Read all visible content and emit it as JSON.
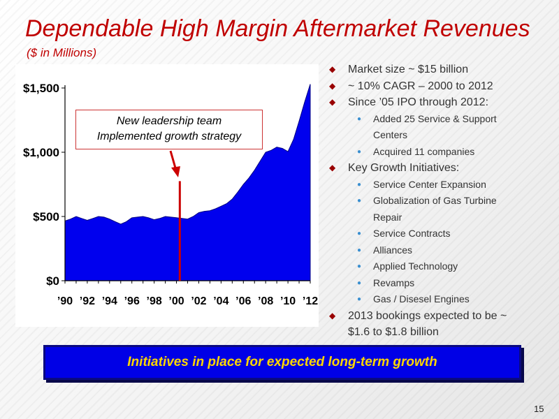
{
  "slide": {
    "title": "Dependable High Margin Aftermarket Revenues",
    "subtitle": "($ in Millions)",
    "callout_line1": "New leadership team",
    "callout_line2": "Implemented growth strategy",
    "banner": "Initiatives in place for expected long-term growth",
    "page_number": "15"
  },
  "bullets": [
    {
      "level": 1,
      "text": "Market size ~ $15 billion"
    },
    {
      "level": 1,
      "text": "~ 10% CAGR – 2000 to 2012"
    },
    {
      "level": 1,
      "text": "Since ’05 IPO through 2012:"
    },
    {
      "level": 2,
      "text": "Added 25 Service & Support"
    },
    {
      "level": 2,
      "text": "Centers",
      "continuation": true
    },
    {
      "level": 2,
      "text": "Acquired 11 companies"
    },
    {
      "level": 1,
      "text": "Key Growth Initiatives:"
    },
    {
      "level": 2,
      "text": "Service Center Expansion"
    },
    {
      "level": 2,
      "text": "Globalization of Gas Turbine"
    },
    {
      "level": 2,
      "text": "Repair",
      "continuation": true
    },
    {
      "level": 2,
      "text": "Service Contracts"
    },
    {
      "level": 2,
      "text": "Alliances"
    },
    {
      "level": 2,
      "text": "Applied Technology"
    },
    {
      "level": 2,
      "text": "Revamps"
    },
    {
      "level": 2,
      "text": "Gas / Disesel Engines"
    },
    {
      "level": 1,
      "text": "2013 bookings expected to be ~"
    },
    {
      "level": 1,
      "text": "$1.6 to $1.8 billion",
      "continuation": true
    }
  ],
  "colors": {
    "title": "#c00000",
    "area_fill": "#0000ee",
    "marker_line": "#cc0000",
    "banner_bg": "#0000e6",
    "banner_text": "#ffd700"
  },
  "chart_data": {
    "type": "area",
    "title": "",
    "xlabel": "",
    "ylabel": "",
    "ylim": [
      0,
      1500
    ],
    "yticks": [
      0,
      500,
      1000,
      1500
    ],
    "ytick_labels": [
      "$0",
      "$500",
      "$1,000",
      "$1,500"
    ],
    "xtick_labels": [
      "’90",
      "’92",
      "’94",
      "’96",
      "’98",
      "’00",
      "’02",
      "’04",
      "’06",
      "’08",
      "’10",
      "’12"
    ],
    "x": [
      1990,
      1990.5,
      1991,
      1991.5,
      1992,
      1992.5,
      1993,
      1993.5,
      1994,
      1994.5,
      1995,
      1995.5,
      1996,
      1996.5,
      1997,
      1997.5,
      1998,
      1998.5,
      1999,
      1999.5,
      2000,
      2000.5,
      2001,
      2001.5,
      2002,
      2002.5,
      2003,
      2003.5,
      2004,
      2004.5,
      2005,
      2005.5,
      2006,
      2006.5,
      2007,
      2007.5,
      2008,
      2008.5,
      2009,
      2009.5,
      2010,
      2010.5,
      2011,
      2011.5,
      2012
    ],
    "values": [
      465,
      480,
      500,
      485,
      470,
      485,
      500,
      495,
      480,
      460,
      440,
      460,
      490,
      495,
      500,
      490,
      475,
      485,
      500,
      495,
      490,
      485,
      480,
      500,
      530,
      540,
      545,
      560,
      580,
      600,
      635,
      690,
      750,
      800,
      860,
      930,
      1000,
      1015,
      1040,
      1030,
      1005,
      1100,
      1240,
      1390,
      1530
    ],
    "marker": {
      "x": 2000.3,
      "y_top": 775
    }
  }
}
